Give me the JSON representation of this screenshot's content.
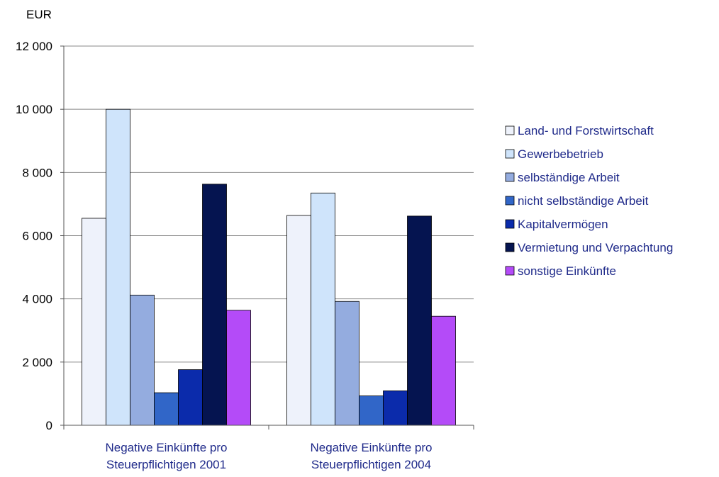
{
  "chart_data": {
    "type": "bar",
    "y_unit": "EUR",
    "ylim": [
      0,
      12000
    ],
    "yticks": [
      0,
      2000,
      4000,
      6000,
      8000,
      10000,
      12000
    ],
    "ytick_labels": [
      "0",
      "2 000",
      "4 000",
      "6 000",
      "8 000",
      "10 000",
      "12 000"
    ],
    "grid": true,
    "legend_position": "right",
    "categories": [
      [
        "Negative Einkünfte pro",
        "Steuerpflichtigen 2001"
      ],
      [
        "Negative Einkünfte pro",
        "Steuerpflichtigen 2004"
      ]
    ],
    "series": [
      {
        "name": "Land- und Forstwirtschaft",
        "color": "#eef2fb",
        "values": [
          6550,
          6640
        ]
      },
      {
        "name": "Gewerbebetrieb",
        "color": "#cfe4fb",
        "values": [
          10000,
          7350
        ]
      },
      {
        "name": "selbständige Arbeit",
        "color": "#94acdf",
        "values": [
          4120,
          3920
        ]
      },
      {
        "name": "nicht selbständige Arbeit",
        "color": "#3166c8",
        "values": [
          1030,
          930
        ]
      },
      {
        "name": "Kapitalvermögen",
        "color": "#0b2bab",
        "values": [
          1760,
          1090
        ]
      },
      {
        "name": "Vermietung und Verpachtung",
        "color": "#051450",
        "values": [
          7630,
          6620
        ]
      },
      {
        "name": "sonstige Einkünfte",
        "color": "#b44bf8",
        "values": [
          3640,
          3450
        ]
      }
    ]
  }
}
